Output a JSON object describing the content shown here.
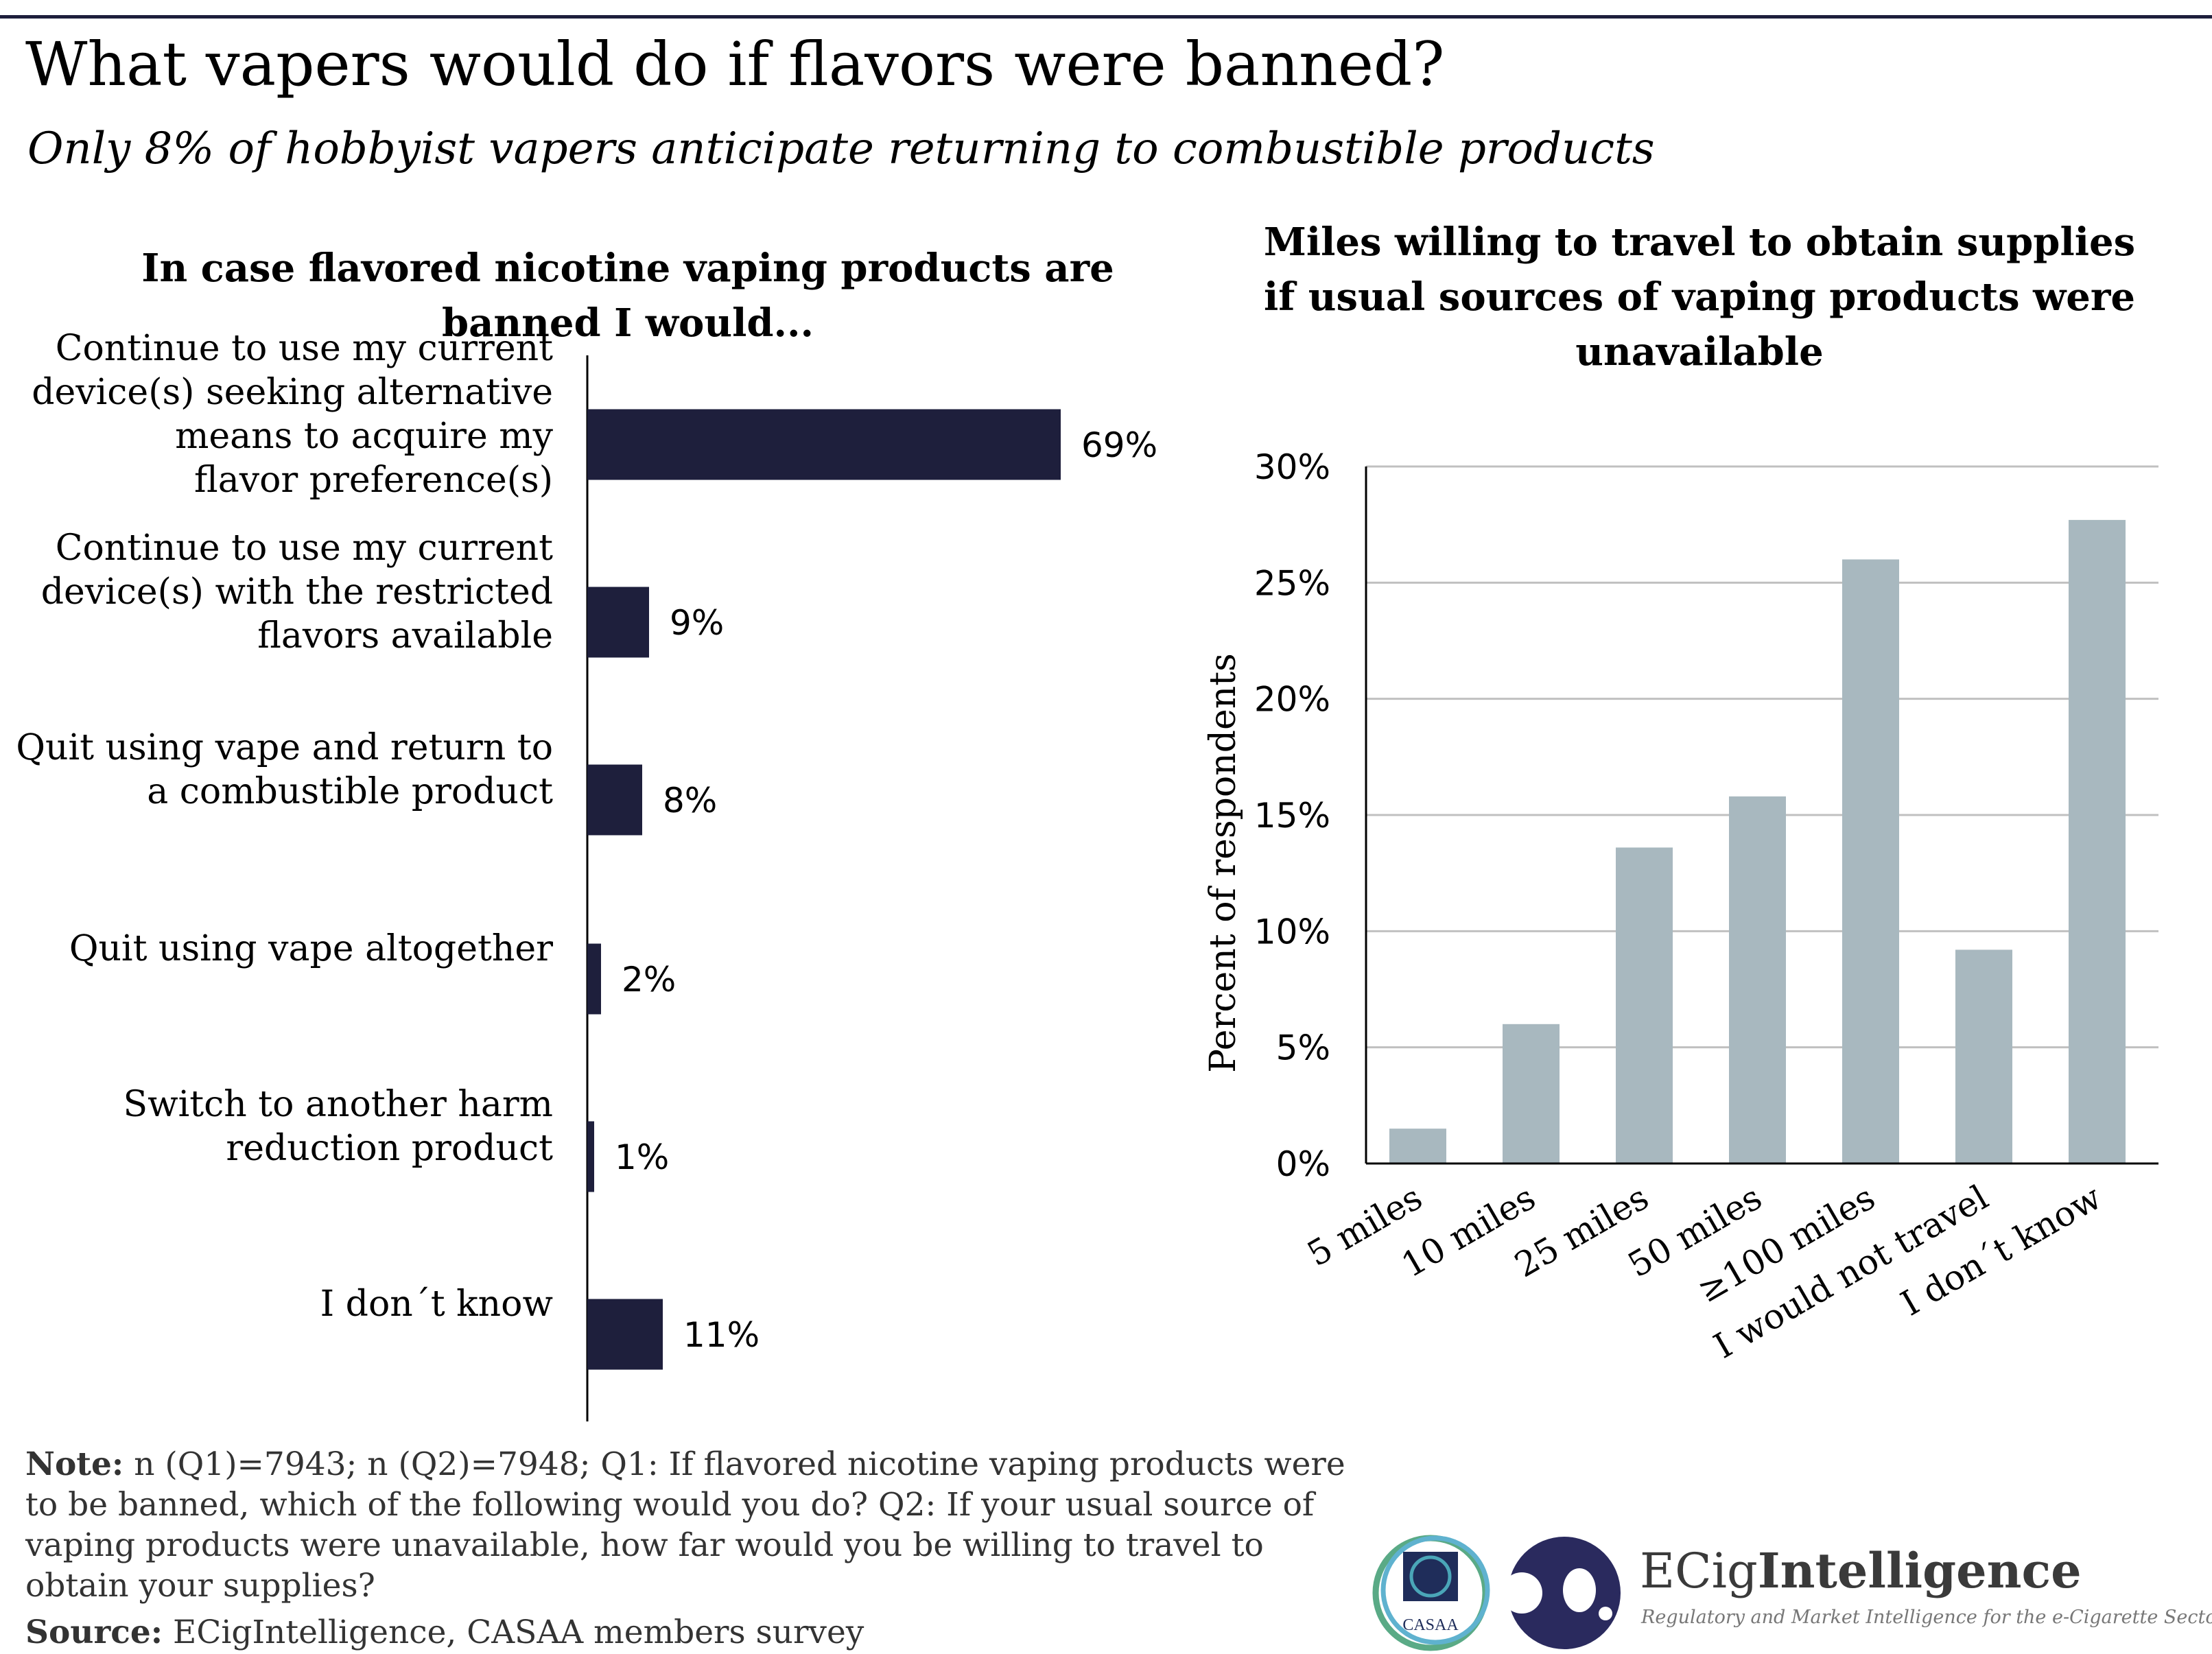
{
  "header": {
    "title": "What vapers would do if flavors were banned?",
    "subtitle": "Only 8% of hobbyist vapers anticipate returning to combustible products"
  },
  "chart_data": [
    {
      "type": "bar",
      "orientation": "horizontal",
      "title_lines": [
        "In case flavored nicotine vaping products are",
        "banned I would..."
      ],
      "categories": [
        [
          "Continue to use my current",
          "device(s) seeking alternative",
          "means to acquire my",
          "flavor preference(s)"
        ],
        [
          "Continue to use my current",
          "device(s) with the restricted",
          "flavors available"
        ],
        [
          "Quit using vape and return to",
          "a combustible product"
        ],
        [
          "Quit using vape altogether"
        ],
        [
          "Switch to another harm",
          "reduction product"
        ],
        [
          "I don´t know"
        ]
      ],
      "values": [
        69,
        9,
        8,
        2,
        1,
        11
      ],
      "data_labels": [
        "69%",
        "9%",
        "8%",
        "2%",
        "1%",
        "11%"
      ],
      "color": "#1e1f3c",
      "grid": false
    },
    {
      "type": "bar",
      "orientation": "vertical",
      "title_lines": [
        "Miles willing to travel to obtain supplies",
        "if usual sources of vaping products were",
        "unavailable"
      ],
      "ylabel": "Percent of respondents",
      "categories": [
        "5 miles",
        "10 miles",
        "25 miles",
        "50 miles",
        "≥100 miles",
        "I would not travel",
        "I don´t know"
      ],
      "values": [
        1.5,
        6.0,
        13.6,
        15.8,
        26.0,
        9.2,
        27.7
      ],
      "ylim": [
        0,
        30
      ],
      "yticks": [
        0,
        5,
        10,
        15,
        20,
        25,
        30
      ],
      "ytick_labels": [
        "0%",
        "5%",
        "10%",
        "15%",
        "20%",
        "25%",
        "30%"
      ],
      "color": "#a8b8bf",
      "grid": true
    }
  ],
  "footer": {
    "note_label": "Note:",
    "note_text": " n (Q1)=7943; n (Q2)=7948; Q1: If flavored nicotine vaping products were to be banned, which of the following would you do? Q2: If your usual source of vaping products were unavailable, how far would you be willing to travel to obtain your supplies?",
    "source_label": "Source:",
    "source_text": " ECigIntelligence, CASAA members survey"
  },
  "logos": {
    "casaa": "CASAA",
    "brand_light": "ECig",
    "brand_bold": "Intelligence",
    "tagline": "Regulatory and Market Intelligence for the e-Cigarette Sector"
  }
}
